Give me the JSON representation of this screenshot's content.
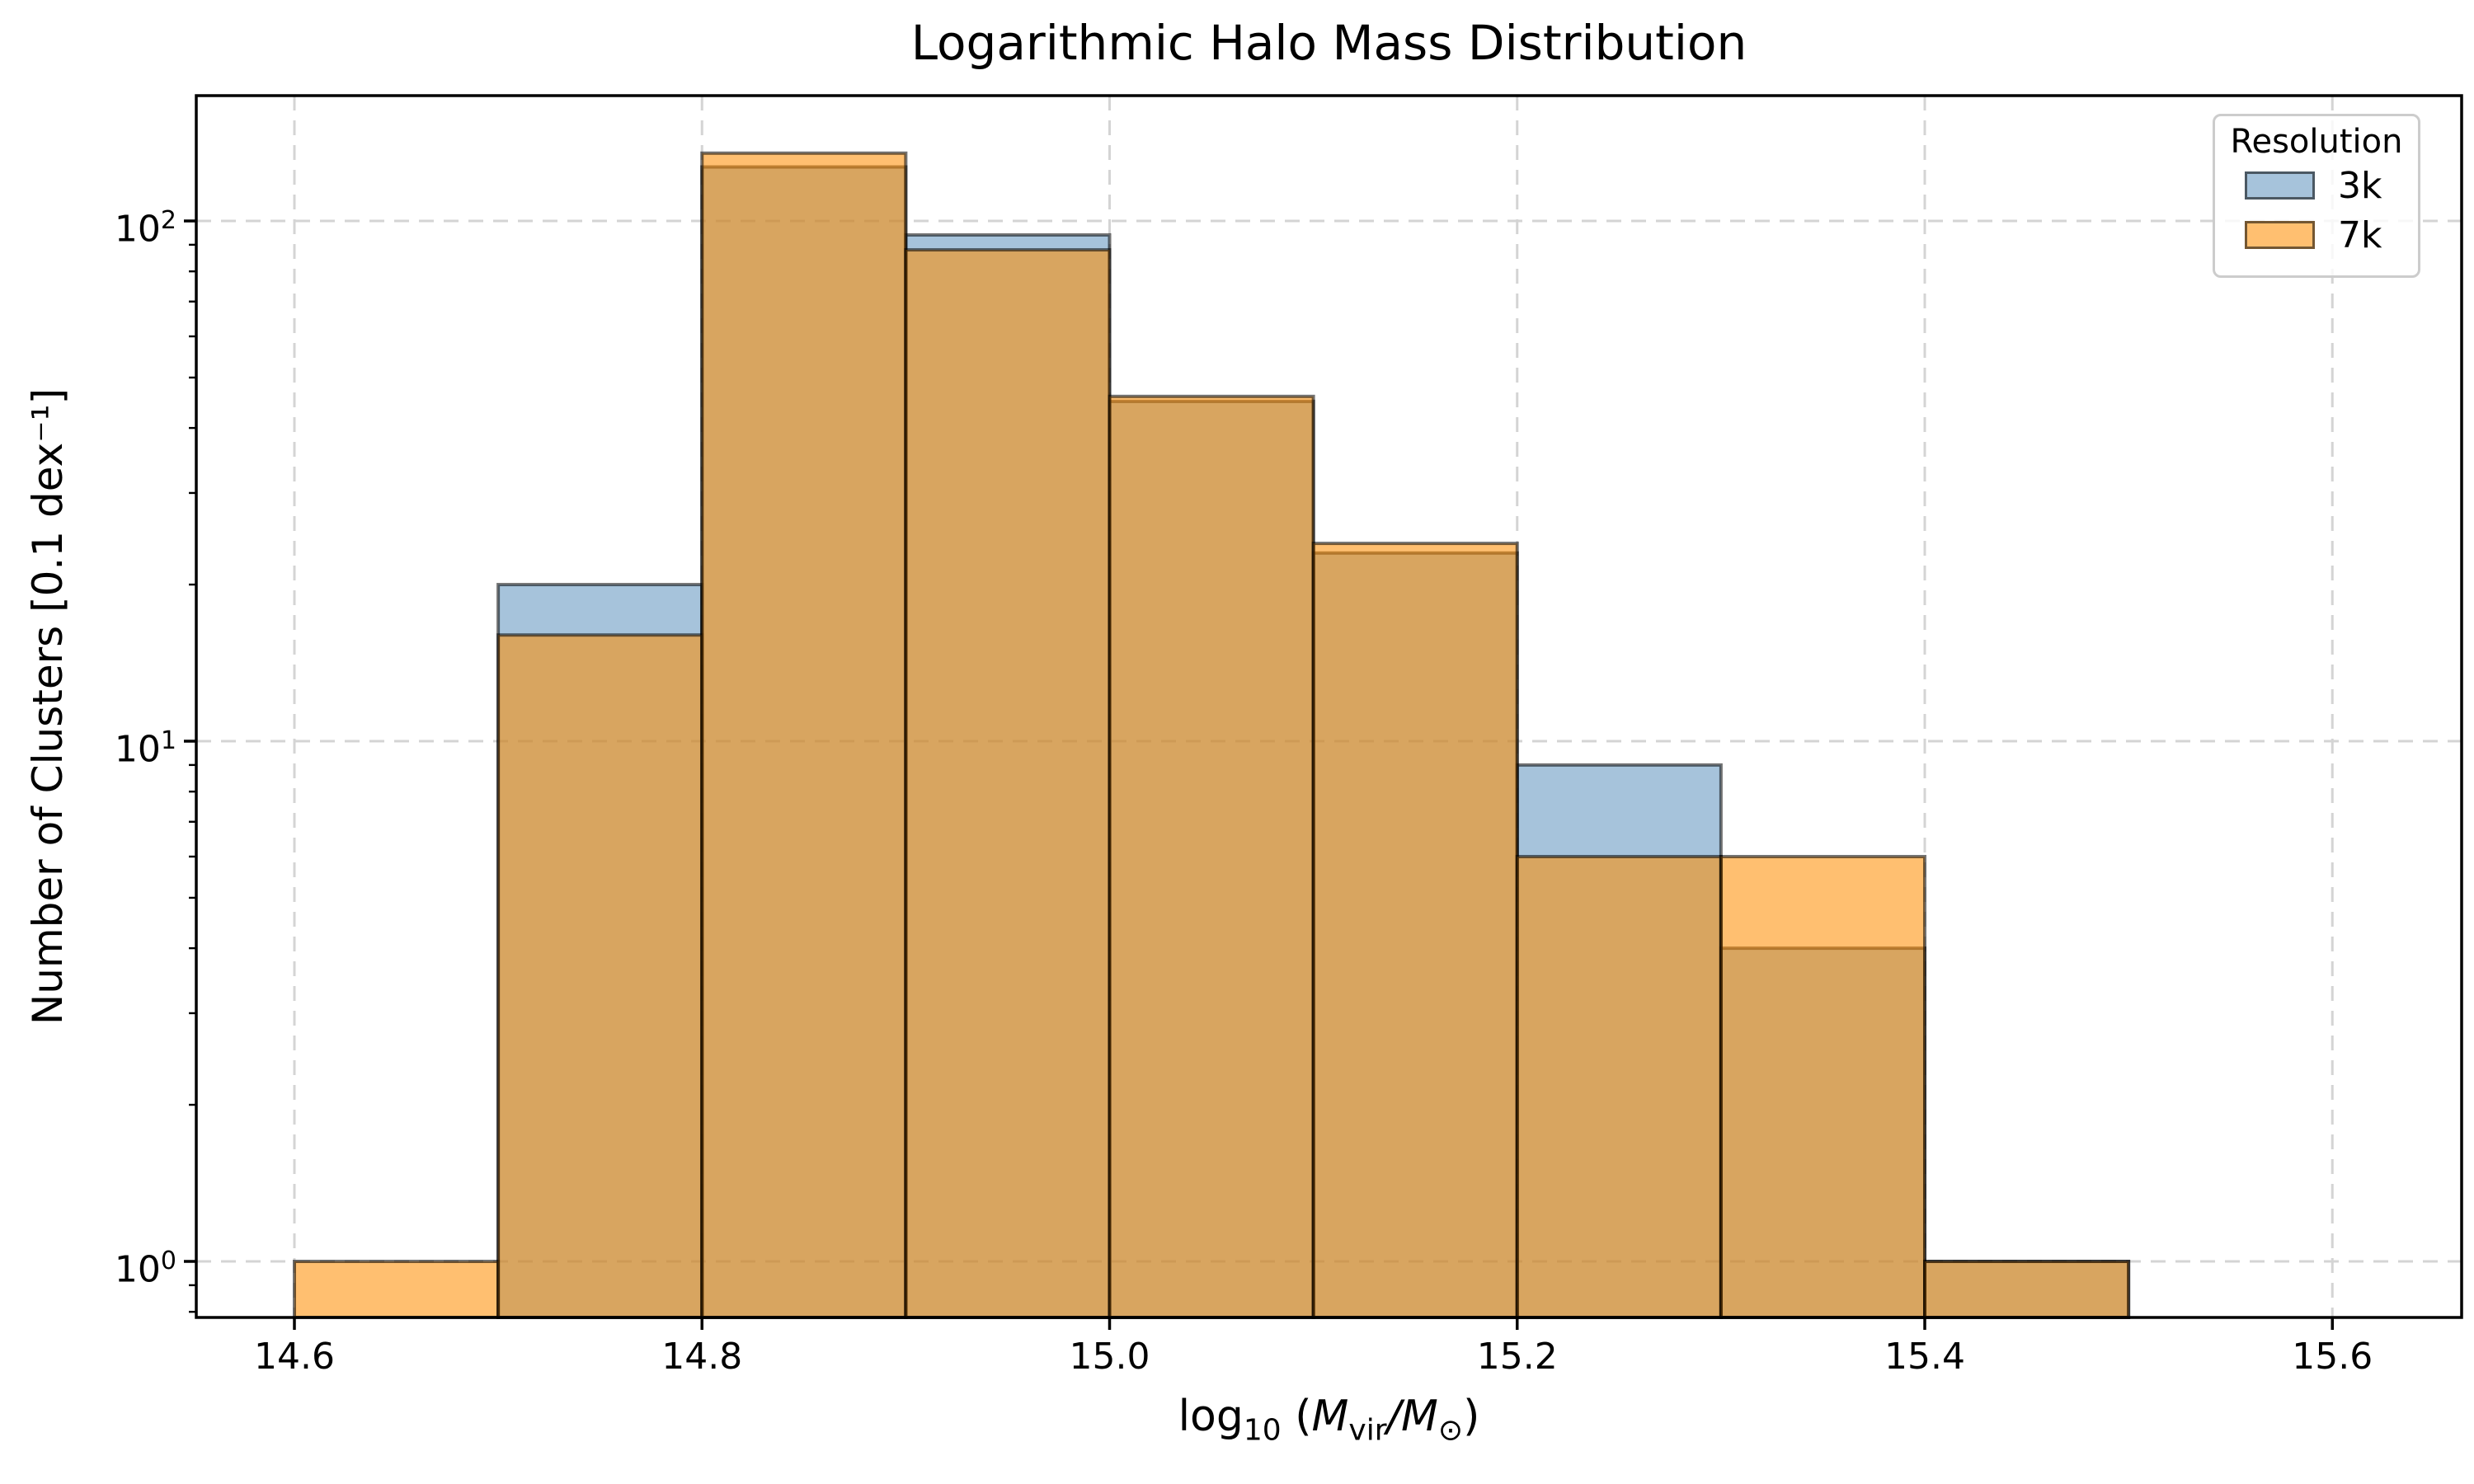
{
  "figure": {
    "title": "Logarithmic Halo Mass Distribution"
  },
  "axes": {
    "ylabel": "Number of Clusters [0.1 dex⁻¹]",
    "xlabel_parts": {
      "func": "log",
      "func_sub": "10",
      "open": " (",
      "m1": "M",
      "m1_sub": "vir",
      "slash": "/",
      "m2": "M",
      "m2_sub": "⊙",
      "close": ")"
    },
    "x_ticks": [
      {
        "label": "14.6",
        "value": 14.6
      },
      {
        "label": "14.8",
        "value": 14.8
      },
      {
        "label": "15.0",
        "value": 15.0
      },
      {
        "label": "15.2",
        "value": 15.2
      },
      {
        "label": "15.4",
        "value": 15.4
      },
      {
        "label": "15.6",
        "value": 15.6
      }
    ],
    "y_ticks": [
      {
        "base": "10",
        "exp": "0",
        "value": 1
      },
      {
        "base": "10",
        "exp": "1",
        "value": 10
      },
      {
        "base": "10",
        "exp": "2",
        "value": 100
      }
    ],
    "y_minor_tick_values": [
      0.8,
      0.9,
      2,
      3,
      4,
      5,
      6,
      7,
      8,
      9,
      20,
      30,
      40,
      50,
      60,
      70,
      80,
      90
    ]
  },
  "legend": {
    "title": "Resolution",
    "items": [
      {
        "label": "3k",
        "color": "#4682b4",
        "fill_opacity": 0.48
      },
      {
        "label": "7k",
        "color": "#ff8c00",
        "fill_opacity": 0.56
      }
    ]
  },
  "chart_data": {
    "type": "bar",
    "subtype": "histogram",
    "title": "Logarithmic Halo Mass Distribution",
    "xlabel": "log10 (Mvir/Msun)",
    "ylabel": "Number of Clusters [0.1 dex^-1]",
    "yscale": "log",
    "bin_width": 0.1,
    "bin_edges": [
      14.6,
      14.7,
      14.8,
      14.9,
      15.0,
      15.1,
      15.2,
      15.3,
      15.4,
      15.5
    ],
    "series": [
      {
        "name": "3k",
        "color": "#4682b4",
        "fill_opacity": 0.48,
        "counts": [
          0,
          20,
          127,
          94,
          45,
          23,
          9,
          4,
          1
        ]
      },
      {
        "name": "7k",
        "color": "#ff8c00",
        "fill_opacity": 0.56,
        "counts": [
          1,
          16,
          135,
          88,
          46,
          24,
          6,
          6,
          1
        ]
      }
    ],
    "edge_color": "#000000",
    "edge_opacity": 0.55,
    "xlim": [
      14.552,
      15.664
    ],
    "ylim": [
      0.78,
      175
    ],
    "grid": true,
    "grid_style": "dashed",
    "legend_position": "upper right"
  }
}
